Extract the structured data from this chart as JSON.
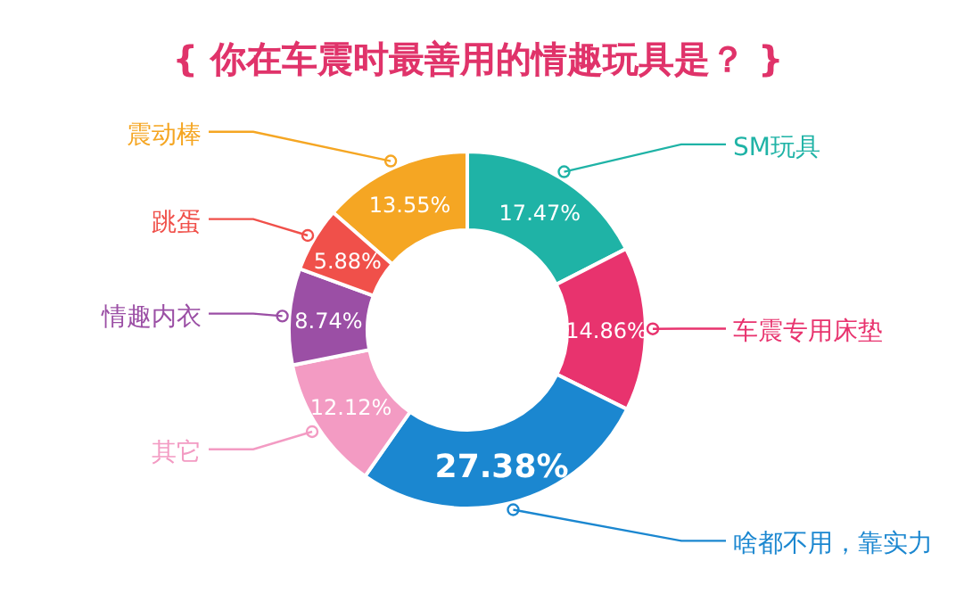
{
  "chart_data": {
    "type": "donut",
    "title": "{ 你在车震时最善用的情趣玩具是？ }",
    "categories": [
      "震动棒",
      "SM玩具",
      "车震专用床垫",
      "啥都不用，靠实力",
      "其它",
      "情趣内衣",
      "跳蛋"
    ],
    "values": [
      13.55,
      17.47,
      14.86,
      27.38,
      12.12,
      8.74,
      5.88
    ],
    "value_labels": [
      "13.55%",
      "17.47%",
      "14.86%",
      "27.38%",
      "12.12%",
      "8.74%",
      "5.88%"
    ],
    "colors": [
      "#f5a623",
      "#1fb3a6",
      "#e8336e",
      "#1b87d0",
      "#f39bc3",
      "#9b4fa5",
      "#f0504a"
    ]
  }
}
